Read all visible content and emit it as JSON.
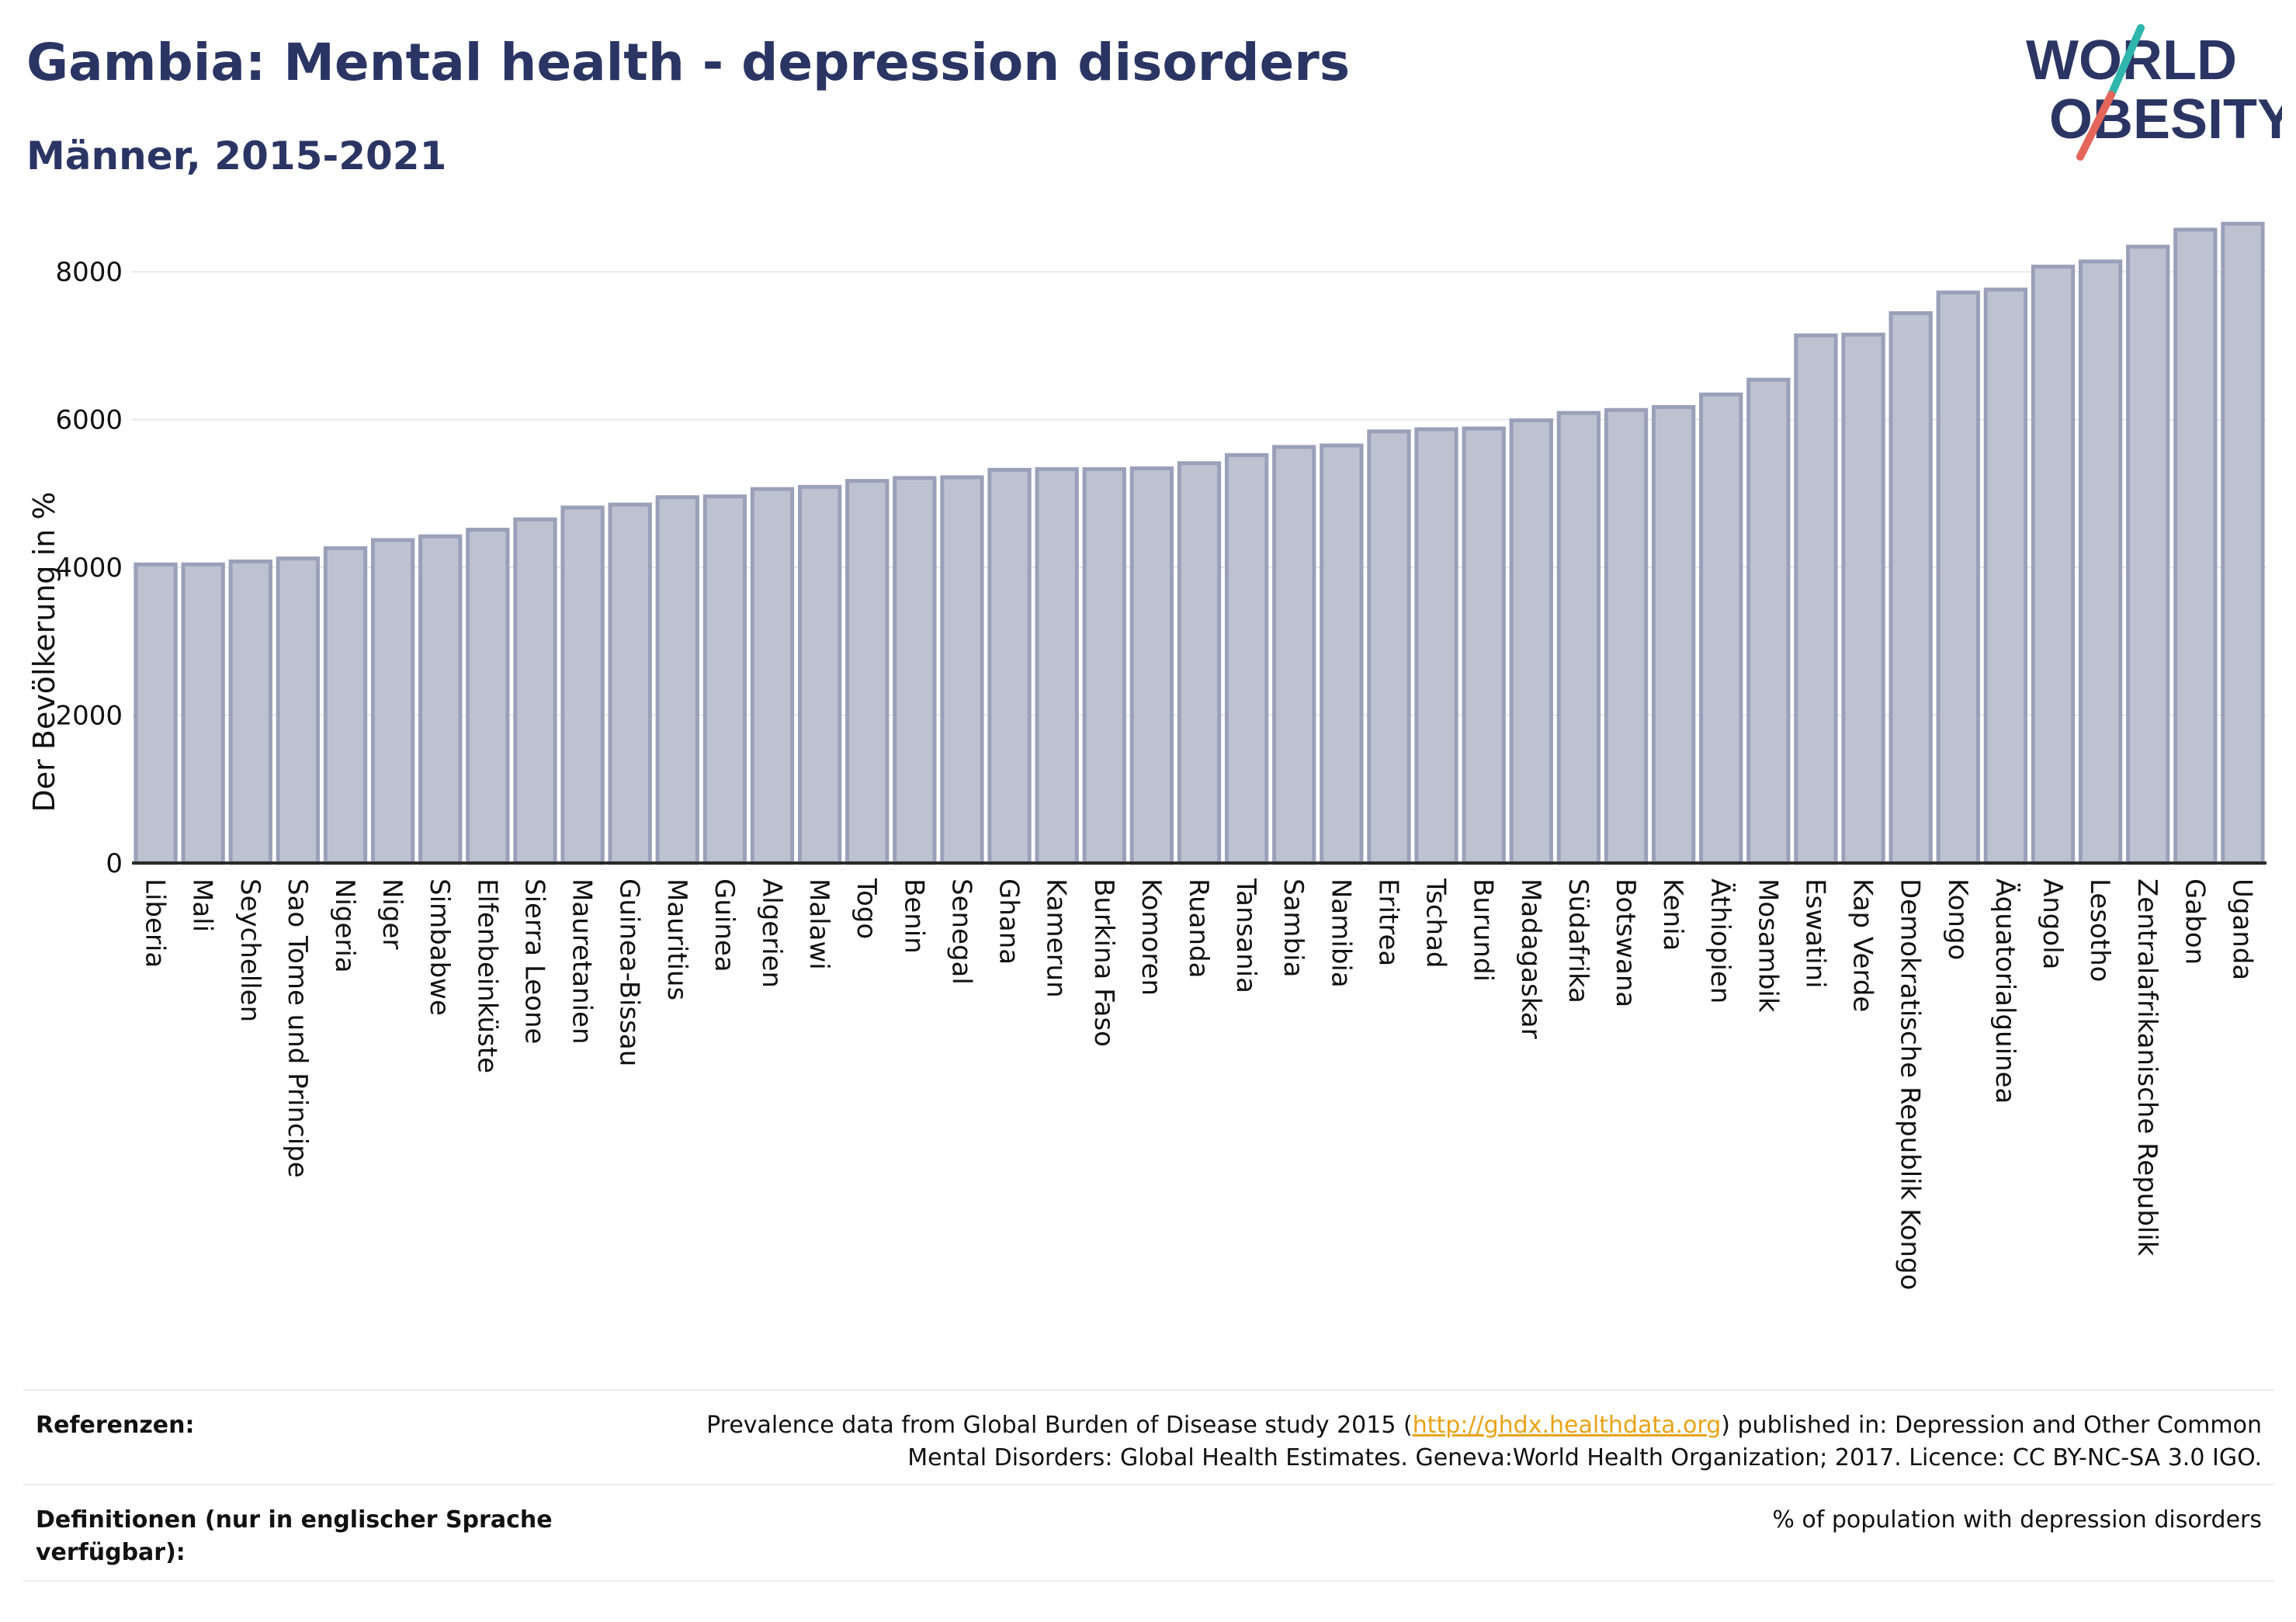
{
  "header": {
    "title": "Gambia: Mental health - depression disorders",
    "subtitle": "Männer, 2015-2021"
  },
  "logo": {
    "line1": "WORLD",
    "line2": "OBESITY",
    "colors": {
      "text": "#2b3564",
      "slash_top": "#2fb6ad",
      "slash_bottom": "#e5655a"
    }
  },
  "chart_data": {
    "type": "bar",
    "title": "Gambia: Mental health - depression disorders",
    "subtitle": "Männer, 2015-2021",
    "xlabel": "",
    "ylabel": "Der Bevölkerung in %",
    "ylim": [
      0,
      9000
    ],
    "yticks": [
      0,
      2000,
      4000,
      6000,
      8000
    ],
    "grid": true,
    "categories": [
      "Liberia",
      "Mali",
      "Seychellen",
      "Sao Tome und Principe",
      "Nigeria",
      "Niger",
      "Simbabwe",
      "Elfenbeinküste",
      "Sierra Leone",
      "Mauretanien",
      "Guinea-Bissau",
      "Mauritius",
      "Guinea",
      "Algerien",
      "Malawi",
      "Togo",
      "Benin",
      "Senegal",
      "Ghana",
      "Kamerun",
      "Burkina Faso",
      "Komoren",
      "Ruanda",
      "Tansania",
      "Sambia",
      "Namibia",
      "Eritrea",
      "Tschad",
      "Burundi",
      "Madagaskar",
      "Südafrika",
      "Botswana",
      "Kenia",
      "Äthiopien",
      "Mosambik",
      "Eswatini",
      "Kap Verde",
      "Demokratische Republik Kongo",
      "Kongo",
      "Äquatorialguinea",
      "Angola",
      "Lesotho",
      "Zentralafrikanische Republik",
      "Gabon",
      "Uganda"
    ],
    "values": [
      4040,
      4040,
      4080,
      4120,
      4260,
      4370,
      4420,
      4510,
      4650,
      4810,
      4850,
      4950,
      4960,
      5060,
      5090,
      5170,
      5210,
      5220,
      5320,
      5330,
      5330,
      5340,
      5410,
      5520,
      5630,
      5650,
      5840,
      5870,
      5880,
      5990,
      6090,
      6130,
      6170,
      6340,
      6540,
      7140,
      7150,
      7440,
      7720,
      7760,
      8070,
      8140,
      8340,
      8570,
      8650
    ],
    "colors": {
      "bar_fill": "#bdc2d0",
      "bar_stroke": "#9aa0b9",
      "grid": "#e6e8ee",
      "axis": "#2a2a2a"
    }
  },
  "footer": {
    "references_label": "Referenzen:",
    "references_text_before": "Prevalence data from Global Burden of Disease study 2015 (",
    "references_link": "http://ghdx.healthdata.org",
    "references_text_after": ") published in: Depression and Other Common Mental Disorders: Global Health Estimates. Geneva:World Health Organization; 2017. Licence: CC BY-NC-SA 3.0 IGO.",
    "definitions_label": "Definitionen (nur in englischer Sprache verfügbar):",
    "definitions_text": "% of population with depression disorders"
  }
}
